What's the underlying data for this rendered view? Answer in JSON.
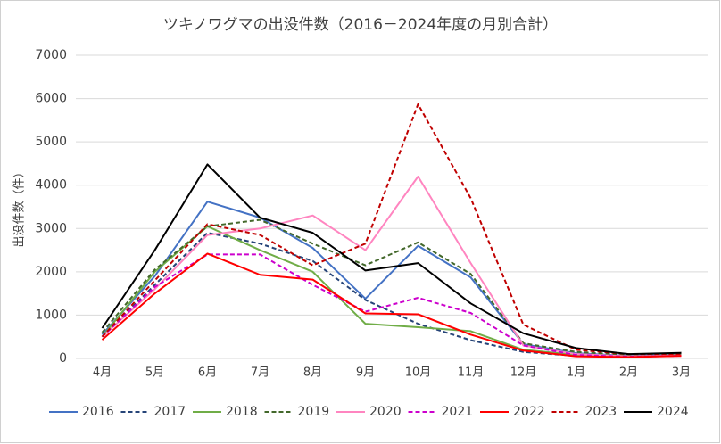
{
  "chart_data": {
    "type": "line",
    "title": "ツキノワグマの出没件数（2016－2024年度の月別合計）",
    "y_label": "出没件数（件）",
    "categories": [
      "4月",
      "5月",
      "6月",
      "7月",
      "8月",
      "9月",
      "10月",
      "11月",
      "12月",
      "1月",
      "2月",
      "3月"
    ],
    "ylim": [
      0,
      7000
    ],
    "yticks": [
      0,
      1000,
      2000,
      3000,
      4000,
      5000,
      6000,
      7000
    ],
    "grid": true,
    "legend": "bottom",
    "series": [
      {
        "name": "2016",
        "color": "#4472c4",
        "dashed": false,
        "values": [
          550,
          1900,
          3620,
          3250,
          2550,
          1380,
          2600,
          1870,
          330,
          120,
          60,
          90
        ]
      },
      {
        "name": "2017",
        "color": "#264478",
        "dashed": true,
        "values": [
          500,
          1700,
          2900,
          2650,
          2250,
          1350,
          800,
          420,
          150,
          60,
          40,
          60
        ]
      },
      {
        "name": "2018",
        "color": "#70ad47",
        "dashed": false,
        "values": [
          500,
          2000,
          3050,
          2500,
          2000,
          800,
          720,
          630,
          200,
          80,
          50,
          80
        ]
      },
      {
        "name": "2019",
        "color": "#43682b",
        "dashed": true,
        "values": [
          600,
          2050,
          3050,
          3200,
          2650,
          2150,
          2680,
          1950,
          350,
          150,
          80,
          100
        ]
      },
      {
        "name": "2020",
        "color": "#ff85c0",
        "dashed": false,
        "values": [
          500,
          1600,
          2850,
          3000,
          3300,
          2500,
          4200,
          2200,
          300,
          100,
          50,
          70
        ]
      },
      {
        "name": "2021",
        "color": "#cc00cc",
        "dashed": true,
        "values": [
          500,
          1650,
          2400,
          2400,
          1700,
          1080,
          1400,
          1050,
          300,
          80,
          40,
          60
        ]
      },
      {
        "name": "2022",
        "color": "#ff0000",
        "dashed": false,
        "values": [
          430,
          1500,
          2420,
          1930,
          1820,
          1040,
          1020,
          550,
          180,
          50,
          30,
          60
        ]
      },
      {
        "name": "2023",
        "color": "#c00000",
        "dashed": true,
        "values": [
          500,
          1800,
          3100,
          2850,
          2150,
          2650,
          5870,
          3700,
          780,
          200,
          100,
          100
        ]
      },
      {
        "name": "2024",
        "color": "#000000",
        "dashed": false,
        "values": [
          700,
          2500,
          4480,
          3250,
          2900,
          2030,
          2200,
          1270,
          580,
          240,
          100,
          130
        ]
      }
    ]
  }
}
